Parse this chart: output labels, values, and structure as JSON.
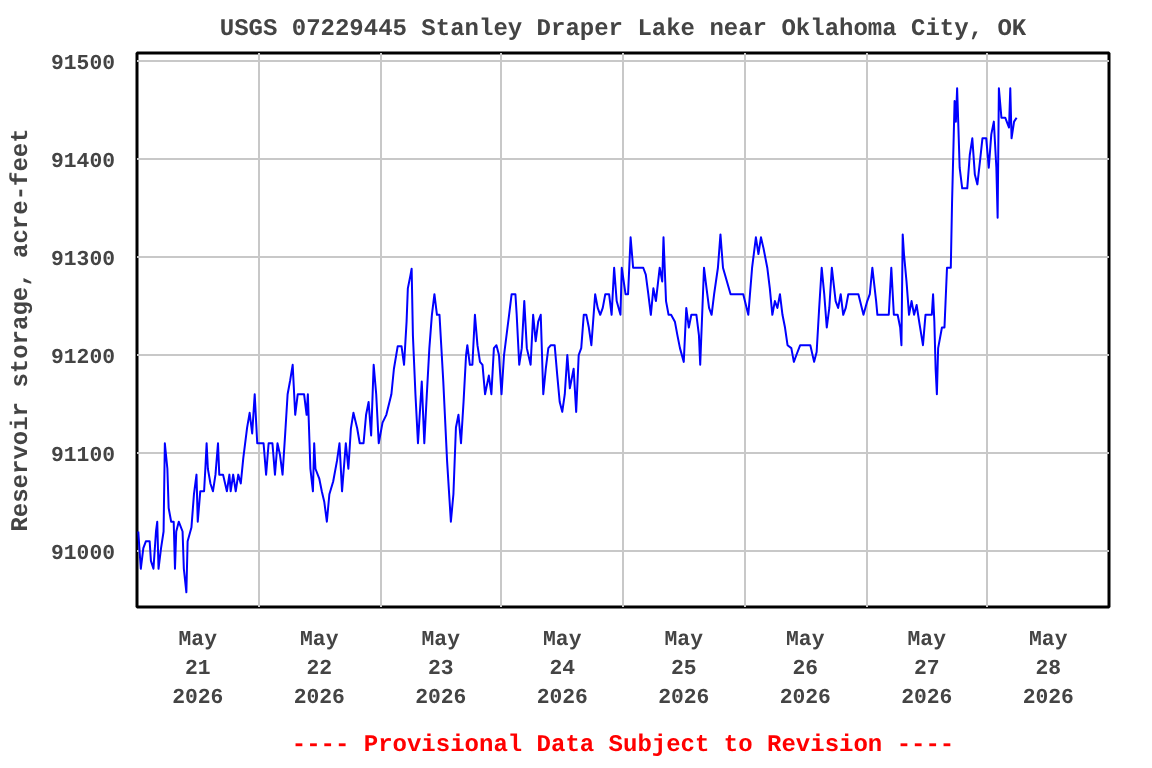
{
  "chart_data": {
    "type": "line",
    "title": "USGS 07229445 Stanley Draper Lake near Oklahoma City, OK",
    "ylabel": "Reservoir storage, acre-feet",
    "annotations": [
      "---- Provisional Data Subject to Revision ----"
    ],
    "xlim": [
      "2026-05-21T00:00",
      "2026-05-29T00:00"
    ],
    "ylim": [
      90943,
      91508
    ],
    "xticks": [
      {
        "value": "2026-05-21T00:00",
        "label": null
      },
      {
        "value": "2026-05-21T12:00",
        "label": "May\n21\n2026"
      },
      {
        "value": "2026-05-22T00:00",
        "label": null
      },
      {
        "value": "2026-05-22T12:00",
        "label": "May\n22\n2026"
      },
      {
        "value": "2026-05-23T00:00",
        "label": null
      },
      {
        "value": "2026-05-23T12:00",
        "label": "May\n23\n2026"
      },
      {
        "value": "2026-05-24T00:00",
        "label": null
      },
      {
        "value": "2026-05-24T12:00",
        "label": "May\n24\n2026"
      },
      {
        "value": "2026-05-25T00:00",
        "label": null
      },
      {
        "value": "2026-05-25T12:00",
        "label": "May\n25\n2026"
      },
      {
        "value": "2026-05-26T00:00",
        "label": null
      },
      {
        "value": "2026-05-26T12:00",
        "label": "May\n26\n2026"
      },
      {
        "value": "2026-05-27T00:00",
        "label": null
      },
      {
        "value": "2026-05-27T12:00",
        "label": "May\n27\n2026"
      },
      {
        "value": "2026-05-28T00:00",
        "label": null
      },
      {
        "value": "2026-05-28T12:00",
        "label": "May\n28\n2026"
      },
      {
        "value": "2026-05-29T00:00",
        "label": null
      }
    ],
    "yticks": [
      91000,
      91100,
      91200,
      91300,
      91400,
      91500
    ],
    "grid": true,
    "series": [
      {
        "color": "#0000ff",
        "x": [
          "2026-05-21T00:15",
          "2026-05-21T00:45",
          "2026-05-21T01:15",
          "2026-05-21T01:45",
          "2026-05-21T02:30",
          "2026-05-21T02:45",
          "2026-05-21T03:15",
          "2026-05-21T03:45",
          "2026-05-21T04:00",
          "2026-05-21T04:15",
          "2026-05-21T04:45",
          "2026-05-21T05:15",
          "2026-05-21T05:30",
          "2026-05-21T06:00",
          "2026-05-21T06:15",
          "2026-05-21T06:45",
          "2026-05-21T07:15",
          "2026-05-21T07:30",
          "2026-05-21T07:45",
          "2026-05-21T08:15",
          "2026-05-21T09:00",
          "2026-05-21T09:15",
          "2026-05-21T09:45",
          "2026-05-21T10:00",
          "2026-05-21T10:45",
          "2026-05-21T11:15",
          "2026-05-21T11:45",
          "2026-05-21T12:00",
          "2026-05-21T12:30",
          "2026-05-21T13:15",
          "2026-05-21T13:30",
          "2026-05-21T13:45",
          "2026-05-21T14:00",
          "2026-05-21T14:30",
          "2026-05-21T15:00",
          "2026-05-21T15:30",
          "2026-05-21T16:00",
          "2026-05-21T16:15",
          "2026-05-21T17:00",
          "2026-05-21T17:45",
          "2026-05-21T18:15",
          "2026-05-21T18:30",
          "2026-05-21T19:00",
          "2026-05-21T19:30",
          "2026-05-21T20:00",
          "2026-05-21T20:30",
          "2026-05-21T21:00",
          "2026-05-21T21:45",
          "2026-05-21T22:15",
          "2026-05-21T22:45",
          "2026-05-21T23:15",
          "2026-05-21T23:45",
          "2026-05-22T01:00",
          "2026-05-22T01:30",
          "2026-05-22T02:00",
          "2026-05-22T02:45",
          "2026-05-22T03:15",
          "2026-05-22T03:45",
          "2026-05-22T04:15",
          "2026-05-22T04:45",
          "2026-05-22T05:15",
          "2026-05-22T05:45",
          "2026-05-22T06:15",
          "2026-05-22T06:45",
          "2026-05-22T07:15",
          "2026-05-22T07:45",
          "2026-05-22T09:00",
          "2026-05-22T09:30",
          "2026-05-22T09:45",
          "2026-05-22T10:15",
          "2026-05-22T10:45",
          "2026-05-22T11:00",
          "2026-05-22T11:15",
          "2026-05-22T12:00",
          "2026-05-22T12:30",
          "2026-05-22T13:00",
          "2026-05-22T13:30",
          "2026-05-22T14:00",
          "2026-05-22T14:45",
          "2026-05-22T15:30",
          "2026-05-22T16:00",
          "2026-05-22T16:30",
          "2026-05-22T17:15",
          "2026-05-22T17:45",
          "2026-05-22T18:15",
          "2026-05-22T18:45",
          "2026-05-22T19:30",
          "2026-05-22T20:00",
          "2026-05-22T20:45",
          "2026-05-22T21:15",
          "2026-05-22T21:45",
          "2026-05-22T22:15",
          "2026-05-22T22:45",
          "2026-05-22T23:15",
          "2026-05-22T23:45",
          "2026-05-23T00:30",
          "2026-05-23T01:15",
          "2026-05-23T02:15",
          "2026-05-23T02:45",
          "2026-05-23T03:30",
          "2026-05-23T04:15",
          "2026-05-23T04:45",
          "2026-05-23T05:15",
          "2026-05-23T05:30",
          "2026-05-23T06:00",
          "2026-05-23T06:15",
          "2026-05-23T06:30",
          "2026-05-23T07:00",
          "2026-05-23T07:30",
          "2026-05-23T08:15",
          "2026-05-23T08:45",
          "2026-05-23T09:15",
          "2026-05-23T09:45",
          "2026-05-23T10:15",
          "2026-05-23T10:45",
          "2026-05-23T11:15",
          "2026-05-23T11:45",
          "2026-05-23T12:30",
          "2026-05-23T13:15",
          "2026-05-23T14:00",
          "2026-05-23T14:30",
          "2026-05-23T15:00",
          "2026-05-23T15:30",
          "2026-05-23T16:00",
          "2026-05-23T16:30",
          "2026-05-23T17:00",
          "2026-05-23T17:15",
          "2026-05-23T17:45",
          "2026-05-23T18:15",
          "2026-05-23T18:45",
          "2026-05-23T19:15",
          "2026-05-23T19:45",
          "2026-05-23T20:15",
          "2026-05-23T20:45",
          "2026-05-23T21:30",
          "2026-05-23T22:00",
          "2026-05-23T22:30",
          "2026-05-23T23:00",
          "2026-05-23T23:30",
          "2026-05-24T00:00",
          "2026-05-24T00:30",
          "2026-05-24T01:30",
          "2026-05-24T02:00",
          "2026-05-24T02:45",
          "2026-05-24T03:00",
          "2026-05-24T03:30",
          "2026-05-24T04:00",
          "2026-05-24T04:30",
          "2026-05-24T05:00",
          "2026-05-24T05:45",
          "2026-05-24T06:15",
          "2026-05-24T06:45",
          "2026-05-24T07:15",
          "2026-05-24T07:45",
          "2026-05-24T08:15",
          "2026-05-24T08:45",
          "2026-05-24T09:15",
          "2026-05-24T09:45",
          "2026-05-24T10:30",
          "2026-05-24T11:00",
          "2026-05-24T11:30",
          "2026-05-24T12:00",
          "2026-05-24T12:30",
          "2026-05-24T13:00",
          "2026-05-24T13:30",
          "2026-05-24T14:15",
          "2026-05-24T14:45",
          "2026-05-24T15:15",
          "2026-05-24T15:45",
          "2026-05-24T16:15",
          "2026-05-24T16:45",
          "2026-05-24T17:15",
          "2026-05-24T17:45",
          "2026-05-24T18:30",
          "2026-05-24T19:00",
          "2026-05-24T19:30",
          "2026-05-24T20:00",
          "2026-05-24T20:30",
          "2026-05-24T21:15",
          "2026-05-24T21:45",
          "2026-05-24T22:15",
          "2026-05-24T22:45",
          "2026-05-24T23:30",
          "2026-05-24T23:45",
          "2026-05-25T00:30",
          "2026-05-25T01:00",
          "2026-05-25T01:30",
          "2026-05-25T02:00",
          "2026-05-25T04:00",
          "2026-05-25T04:30",
          "2026-05-25T05:00",
          "2026-05-25T05:30",
          "2026-05-25T06:00",
          "2026-05-25T06:30",
          "2026-05-25T07:15",
          "2026-05-25T07:45",
          "2026-05-25T08:00",
          "2026-05-25T08:30",
          "2026-05-25T09:00",
          "2026-05-25T09:30",
          "2026-05-25T10:15",
          "2026-05-25T10:45",
          "2026-05-25T11:15",
          "2026-05-25T12:00",
          "2026-05-25T12:30",
          "2026-05-25T13:00",
          "2026-05-25T13:30",
          "2026-05-25T14:30",
          "2026-05-25T15:00",
          "2026-05-25T15:15",
          "2026-05-25T16:00",
          "2026-05-25T16:30",
          "2026-05-25T17:00",
          "2026-05-25T17:30",
          "2026-05-25T18:00",
          "2026-05-25T18:45",
          "2026-05-25T19:15",
          "2026-05-25T19:45",
          "2026-05-25T21:15",
          "2026-05-25T23:45",
          "2026-05-26T00:45",
          "2026-05-26T01:30",
          "2026-05-26T02:15",
          "2026-05-26T02:45",
          "2026-05-26T03:15",
          "2026-05-26T03:45",
          "2026-05-26T04:30",
          "2026-05-26T05:00",
          "2026-05-26T05:30",
          "2026-05-26T06:00",
          "2026-05-26T06:30",
          "2026-05-26T07:00",
          "2026-05-26T07:30",
          "2026-05-26T08:00",
          "2026-05-26T08:30",
          "2026-05-26T09:15",
          "2026-05-26T09:45",
          "2026-05-26T10:15",
          "2026-05-26T11:00",
          "2026-05-26T13:00",
          "2026-05-26T13:45",
          "2026-05-26T14:15",
          "2026-05-26T14:45",
          "2026-05-26T15:15",
          "2026-05-26T15:45",
          "2026-05-26T16:15",
          "2026-05-26T16:45",
          "2026-05-26T17:15",
          "2026-05-26T18:00",
          "2026-05-26T18:30",
          "2026-05-26T19:00",
          "2026-05-26T19:30",
          "2026-05-26T20:00",
          "2026-05-26T20:30",
          "2026-05-26T22:30",
          "2026-05-26T23:30",
          "2026-05-27T00:15",
          "2026-05-27T00:45",
          "2026-05-27T01:15",
          "2026-05-27T02:00",
          "2026-05-27T02:15",
          "2026-05-27T04:30",
          "2026-05-27T05:00",
          "2026-05-27T05:30",
          "2026-05-27T06:15",
          "2026-05-27T06:45",
          "2026-05-27T07:00",
          "2026-05-27T07:15",
          "2026-05-27T07:30",
          "2026-05-27T08:00",
          "2026-05-27T08:30",
          "2026-05-27T09:00",
          "2026-05-27T09:30",
          "2026-05-27T10:00",
          "2026-05-27T10:30",
          "2026-05-27T11:15",
          "2026-05-27T11:45",
          "2026-05-27T13:00",
          "2026-05-27T13:15",
          "2026-05-27T13:30",
          "2026-05-27T13:45",
          "2026-05-27T14:00",
          "2026-05-27T14:15",
          "2026-05-27T15:00",
          "2026-05-27T15:30",
          "2026-05-27T16:00",
          "2026-05-27T16:45",
          "2026-05-27T17:00",
          "2026-05-27T17:30",
          "2026-05-27T17:45",
          "2026-05-27T18:00",
          "2026-05-27T18:15",
          "2026-05-27T18:30",
          "2026-05-27T19:00",
          "2026-05-27T20:00",
          "2026-05-27T20:30",
          "2026-05-27T21:00",
          "2026-05-27T21:30",
          "2026-05-27T22:00",
          "2026-05-27T22:30",
          "2026-05-27T23:00",
          "2026-05-27T23:45",
          "2026-05-28T00:15",
          "2026-05-28T00:45",
          "2026-05-28T01:15",
          "2026-05-28T01:45",
          "2026-05-28T02:00",
          "2026-05-28T02:15",
          "2026-05-28T02:45",
          "2026-05-28T03:30",
          "2026-05-28T04:15",
          "2026-05-28T04:30",
          "2026-05-28T04:45",
          "2026-05-28T05:15",
          "2026-05-28T05:45"
        ],
        "values": [
          91020,
          90982,
          91003,
          91010,
          91010,
          90990,
          90982,
          91020,
          91030,
          90982,
          91003,
          91020,
          91110,
          91084,
          91044,
          91030,
          91030,
          90982,
          91020,
          91030,
          91020,
          90982,
          90958,
          91010,
          91024,
          91058,
          91078,
          91030,
          91061,
          91061,
          91084,
          91110,
          91084,
          91069,
          91061,
          91078,
          91110,
          91078,
          91078,
          91061,
          91078,
          91061,
          91078,
          91061,
          91078,
          91069,
          91095,
          91126,
          91141,
          91120,
          91160,
          91110,
          91110,
          91078,
          91110,
          91110,
          91078,
          91110,
          91098,
          91078,
          91118,
          91160,
          91174,
          91190,
          91139,
          91160,
          91160,
          91139,
          91160,
          91084,
          91061,
          91110,
          91084,
          91074,
          91061,
          91050,
          91030,
          91058,
          91071,
          91092,
          91110,
          91061,
          91110,
          91084,
          91125,
          91141,
          91125,
          91110,
          91110,
          91139,
          91152,
          91118,
          91190,
          91160,
          91110,
          91131,
          91139,
          91160,
          91186,
          91209,
          91209,
          91190,
          91234,
          91268,
          91281,
          91288,
          91220,
          91160,
          91110,
          91173,
          91110,
          91160,
          91207,
          91241,
          91262,
          91241,
          91241,
          91173,
          91092,
          91030,
          91058,
          91126,
          91139,
          91110,
          91152,
          91200,
          91210,
          91190,
          91190,
          91241,
          91210,
          91193,
          91190,
          91160,
          91179,
          91160,
          91207,
          91210,
          91200,
          91160,
          91200,
          91241,
          91262,
          91262,
          91241,
          91190,
          91207,
          91255,
          91207,
          91190,
          91241,
          91214,
          91234,
          91241,
          91160,
          91186,
          91207,
          91210,
          91210,
          91180,
          91152,
          91142,
          91160,
          91200,
          91166,
          91186,
          91142,
          91200,
          91207,
          91241,
          91241,
          91228,
          91210,
          91262,
          91248,
          91241,
          91248,
          91262,
          91262,
          91241,
          91289,
          91255,
          91241,
          91289,
          91262,
          91262,
          91320,
          91289,
          91289,
          91282,
          91262,
          91241,
          91268,
          91255,
          91289,
          91275,
          91320,
          91255,
          91241,
          91241,
          91234,
          91220,
          91207,
          91193,
          91248,
          91228,
          91241,
          91241,
          91220,
          91190,
          91289,
          91268,
          91248,
          91241,
          91262,
          91289,
          91323,
          91289,
          91262,
          91262,
          91241,
          91289,
          91320,
          91303,
          91320,
          91309,
          91289,
          91268,
          91241,
          91255,
          91248,
          91262,
          91241,
          91228,
          91210,
          91207,
          91193,
          91200,
          91210,
          91210,
          91193,
          91203,
          91248,
          91289,
          91262,
          91228,
          91248,
          91289,
          91255,
          91248,
          91262,
          91241,
          91248,
          91262,
          91262,
          91241,
          91255,
          91262,
          91289,
          91255,
          91241,
          91241,
          91289,
          91241,
          91241,
          91228,
          91210,
          91323,
          91303,
          91275,
          91241,
          91255,
          91241,
          91251,
          91234,
          91210,
          91241,
          91241,
          91262,
          91234,
          91186,
          91160,
          91207,
          91228,
          91228,
          91289,
          91289,
          91356,
          91459,
          91438,
          91472,
          91432,
          91391,
          91370,
          91370,
          91404,
          91421,
          91384,
          91374,
          91397,
          91421,
          91421,
          91391,
          91425,
          91438,
          91391,
          91340,
          91472,
          91442,
          91442,
          91432,
          91472,
          91421,
          91438,
          91442
        ]
      }
    ]
  }
}
